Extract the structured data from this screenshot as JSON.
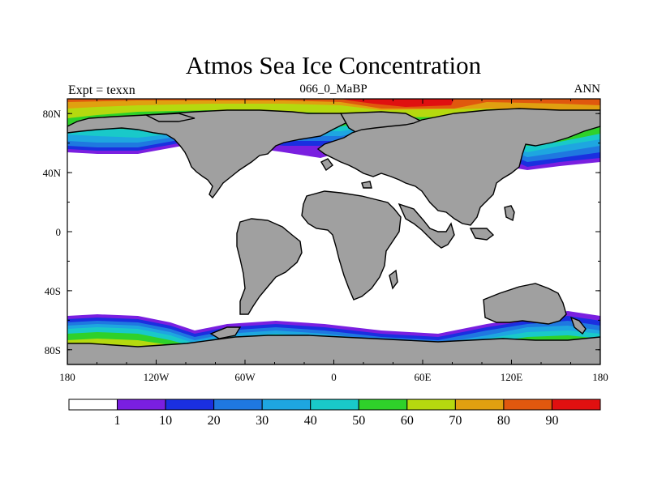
{
  "chart_data": {
    "type": "heatmap",
    "title": "Atmos Sea Ice Concentration",
    "subtitle_left": "Expt = texxn",
    "subtitle_center": "066_0_MaBP",
    "subtitle_right": "ANN",
    "x_ticks": [
      "180",
      "120W",
      "60W",
      "0",
      "60E",
      "120E",
      "180"
    ],
    "y_ticks": [
      "80N",
      "40N",
      "0",
      "40S",
      "80S"
    ],
    "x_tick_values": [
      -180,
      -120,
      -60,
      0,
      60,
      120,
      180
    ],
    "y_tick_values": [
      80,
      40,
      0,
      -40,
      -80
    ],
    "xlim": [
      -180,
      180
    ],
    "ylim": [
      -90,
      90
    ],
    "colorbar": {
      "labels": [
        "1",
        "10",
        "20",
        "30",
        "40",
        "50",
        "60",
        "70",
        "80",
        "90"
      ],
      "colors": [
        "#ffffff",
        "#7a1fe0",
        "#1a2fe0",
        "#1f78e0",
        "#1ea6e0",
        "#19c9c9",
        "#2fd12a",
        "#b5d90f",
        "#e0a010",
        "#e0580e",
        "#e01010"
      ]
    },
    "land_color": "#a0a0a0"
  }
}
